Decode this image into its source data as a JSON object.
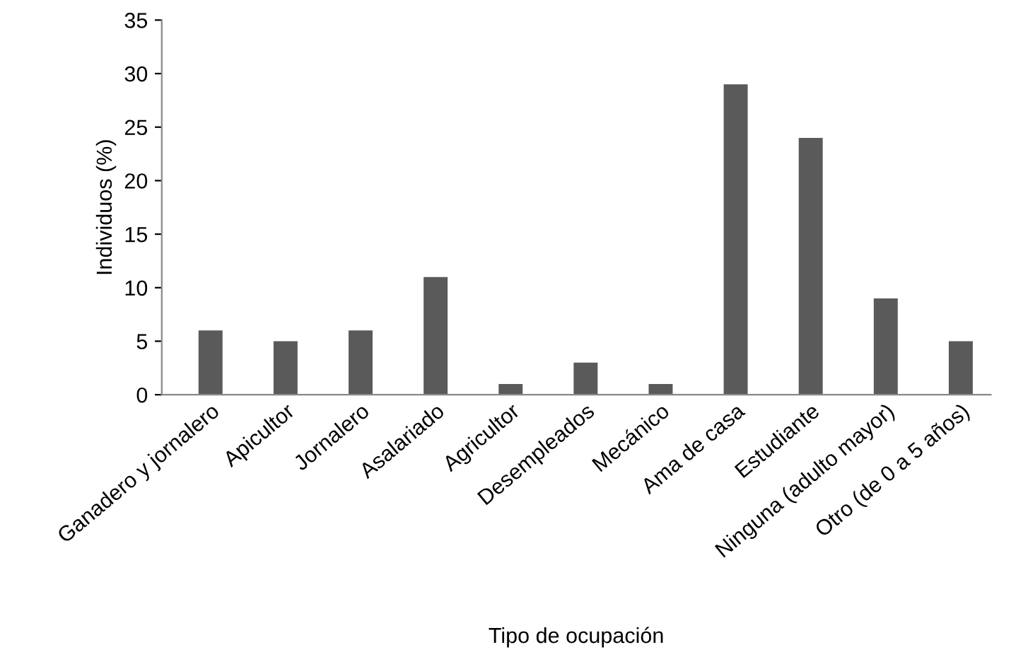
{
  "chart_data": {
    "type": "bar",
    "xlabel": "Tipo de ocupación",
    "ylabel": "Individuos (%)",
    "categories": [
      "Ganadero y jornalero",
      "Apicultor",
      "Jornalero",
      "Asalariado",
      "Agricultor",
      "Desempleados",
      "Mecánico",
      "Ama de casa",
      "Estudiante",
      "Ninguna (adulto mayor)",
      "Otro (de 0 a 5 años)"
    ],
    "values": [
      6,
      5,
      6,
      11,
      1,
      3,
      1,
      29,
      24,
      9,
      5
    ],
    "color": "#5a5a5a",
    "ylim": [
      0,
      35
    ],
    "yticks": [
      0,
      5,
      10,
      15,
      20,
      25,
      30,
      35
    ],
    "grid": false,
    "legend": false
  }
}
